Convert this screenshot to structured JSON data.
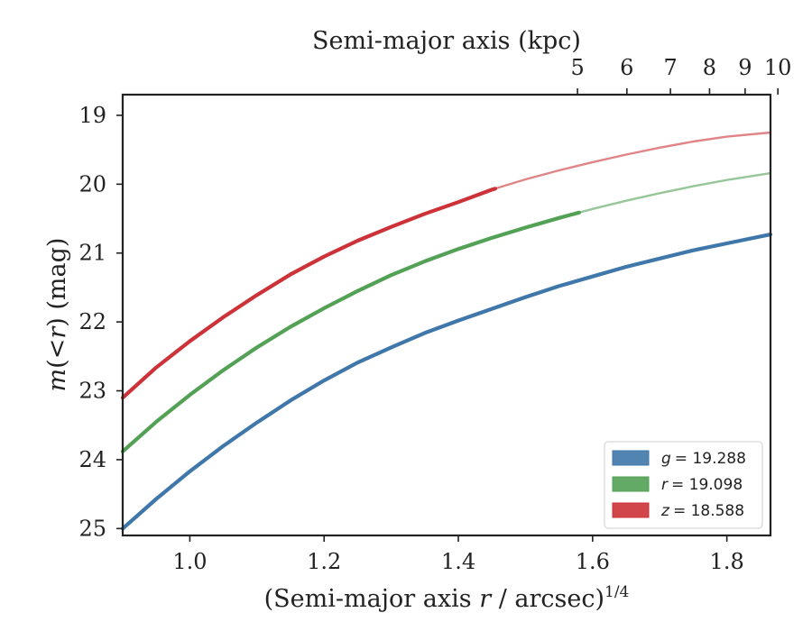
{
  "chart_data": {
    "type": "line",
    "xlabel_pre": "(Semi-major axis ",
    "xlabel_var": "r",
    "xlabel_post": " / arcsec)",
    "xlabel_sup": "1/4",
    "ylabel_var_m": "m",
    "ylabel_mid": "(<",
    "ylabel_var_r": "r",
    "ylabel_post": ") (mag)",
    "top_xlabel": "Semi-major axis (kpc)",
    "xlim": [
      0.9,
      1.865
    ],
    "ylim": [
      25.1,
      18.7
    ],
    "y_inverted": true,
    "x_ticks": [
      1.0,
      1.2,
      1.4,
      1.6,
      1.8
    ],
    "x_tick_labels": [
      "1.0",
      "1.2",
      "1.4",
      "1.6",
      "1.8"
    ],
    "y_ticks": [
      19,
      20,
      21,
      22,
      23,
      24,
      25
    ],
    "y_tick_labels": [
      "19",
      "20",
      "21",
      "22",
      "23",
      "24",
      "25"
    ],
    "top_ticks_kpc": [
      5,
      6,
      7,
      8,
      9,
      10
    ],
    "top_tick_labels": [
      "5",
      "6",
      "7",
      "8",
      "9",
      "10"
    ],
    "kpc_per_arcsec": 0.8074,
    "grid": false,
    "legend_position": "lower-right",
    "series": [
      {
        "name": "g = 19.288",
        "legend_var": "g",
        "legend_val": "= 19.288",
        "color": "#3f77aa",
        "x": [
          0.9,
          0.95,
          1.0,
          1.05,
          1.1,
          1.15,
          1.2,
          1.25,
          1.3,
          1.35,
          1.4,
          1.45,
          1.5,
          1.55,
          1.6,
          1.65,
          1.7,
          1.75,
          1.8,
          1.865
        ],
        "y": [
          25.0,
          24.57,
          24.17,
          23.8,
          23.46,
          23.14,
          22.85,
          22.59,
          22.37,
          22.16,
          21.98,
          21.81,
          21.64,
          21.48,
          21.34,
          21.2,
          21.08,
          20.96,
          20.86,
          20.73
        ],
        "x_solid_end": 1.865
      },
      {
        "name": "r = 19.098",
        "legend_var": "r",
        "legend_val": "= 19.098",
        "color": "#52a155",
        "x": [
          0.9,
          0.95,
          1.0,
          1.05,
          1.1,
          1.15,
          1.2,
          1.25,
          1.3,
          1.35,
          1.4,
          1.45,
          1.5,
          1.55,
          1.6,
          1.65,
          1.7,
          1.75,
          1.8,
          1.865
        ],
        "y": [
          23.88,
          23.45,
          23.06,
          22.7,
          22.37,
          22.07,
          21.8,
          21.55,
          21.32,
          21.12,
          20.94,
          20.78,
          20.63,
          20.49,
          20.36,
          20.24,
          20.13,
          20.03,
          19.94,
          19.84
        ],
        "x_solid_end": 1.58
      },
      {
        "name": "z = 18.588",
        "legend_var": "z",
        "legend_val": "= 18.588",
        "color": "#cc3237",
        "x": [
          0.9,
          0.95,
          1.0,
          1.05,
          1.1,
          1.15,
          1.2,
          1.25,
          1.3,
          1.35,
          1.4,
          1.45,
          1.5,
          1.55,
          1.6,
          1.65,
          1.7,
          1.75,
          1.8,
          1.865
        ],
        "y": [
          23.1,
          22.66,
          22.28,
          21.93,
          21.61,
          21.31,
          21.05,
          20.82,
          20.62,
          20.43,
          20.26,
          20.08,
          19.93,
          19.8,
          19.68,
          19.57,
          19.47,
          19.38,
          19.31,
          19.25
        ],
        "x_solid_end": 1.455
      }
    ]
  }
}
